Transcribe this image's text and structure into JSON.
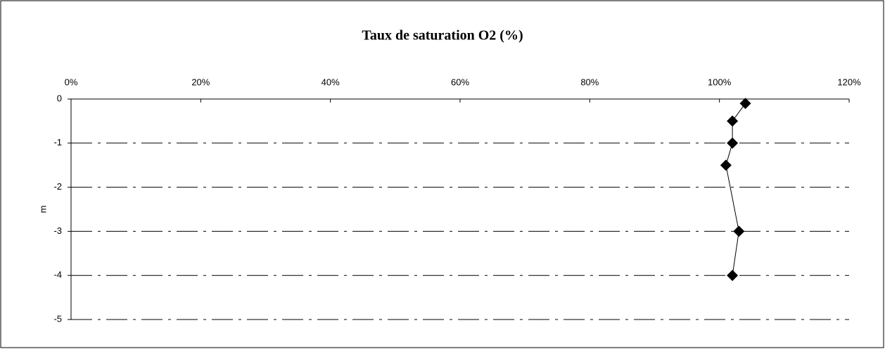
{
  "chart_data": {
    "type": "line",
    "title": "Taux de saturation O2 (%)",
    "ylabel": "m",
    "x": [
      104,
      102,
      102,
      101,
      103,
      102
    ],
    "values": [
      -0.1,
      -0.5,
      -1,
      -1.5,
      -3,
      -4
    ],
    "color": "#000000",
    "xlim": [
      0,
      120
    ],
    "xticks": [
      {
        "value": 0,
        "label": "0%"
      },
      {
        "value": 20,
        "label": "20%"
      },
      {
        "value": 40,
        "label": "40%"
      },
      {
        "value": 60,
        "label": "60%"
      },
      {
        "value": 80,
        "label": "80%"
      },
      {
        "value": 100,
        "label": "100%"
      },
      {
        "value": 120,
        "label": "120%"
      }
    ],
    "ylim": [
      -5,
      0
    ],
    "yticks": [
      0,
      -1,
      -2,
      -3,
      -4,
      -5
    ],
    "grid": true
  }
}
